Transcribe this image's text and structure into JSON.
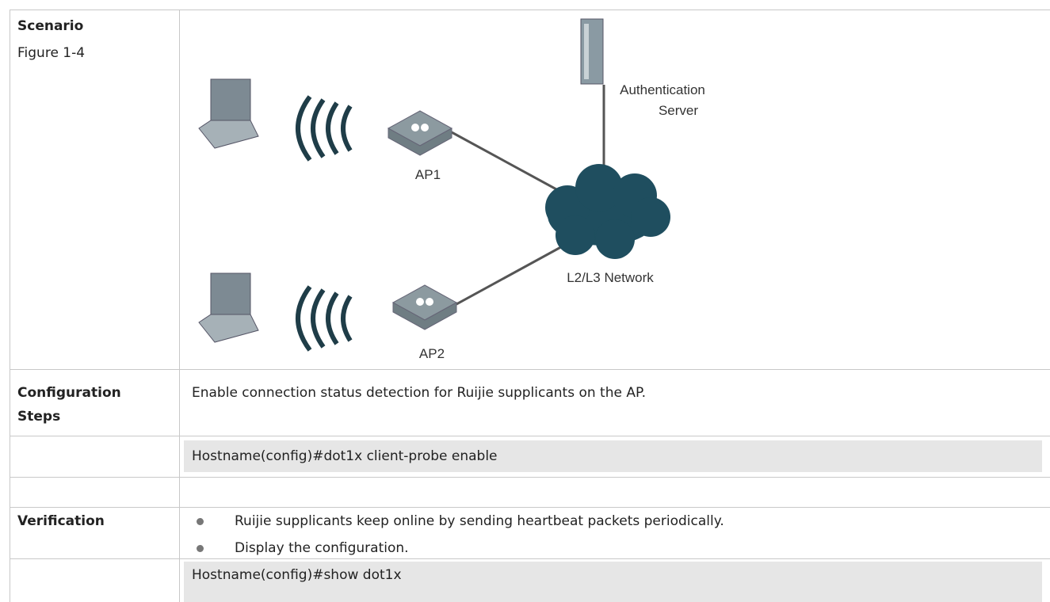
{
  "scenario": {
    "label": "Scenario",
    "figure": "Figure 1-4",
    "diagram": {
      "server_label": [
        "Authentication",
        "Server"
      ],
      "ap1": "AP1",
      "ap2": "AP2",
      "network": "L2/L3 Network"
    }
  },
  "configuration": {
    "label": "Configuration Steps",
    "text": "Enable connection status detection for Ruijie supplicants on the AP.",
    "command": "Hostname(config)#dot1x client-probe enable"
  },
  "verification": {
    "label": "Verification",
    "bullets": [
      "Ruijie supplicants keep online by sending heartbeat packets periodically.",
      "Display the configuration."
    ],
    "command": "Hostname(config)#show dot1x"
  }
}
